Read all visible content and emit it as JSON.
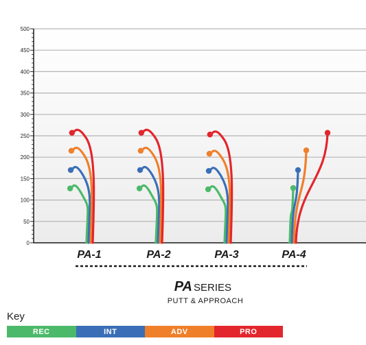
{
  "chart_data": {
    "type": "line",
    "title": "",
    "xlabel": "",
    "ylabel": "",
    "ylim": [
      0,
      500
    ],
    "y_ticks": [
      "0",
      "50",
      "100",
      "150",
      "200",
      "250",
      "300",
      "350",
      "400",
      "450",
      "500"
    ],
    "grid": true,
    "categories": [
      "PA-1",
      "PA-2",
      "PA-3",
      "PA-4"
    ],
    "series": [
      {
        "name": "REC",
        "color": "#4cb96a",
        "values": [
          127,
          127,
          125,
          128
        ]
      },
      {
        "name": "INT",
        "color": "#3a6fb7",
        "values": [
          170,
          170,
          168,
          170
        ]
      },
      {
        "name": "ADV",
        "color": "#f07f2a",
        "values": [
          215,
          215,
          208,
          216
        ]
      },
      {
        "name": "PRO",
        "color": "#e3262d",
        "values": [
          257,
          257,
          253,
          257
        ]
      }
    ],
    "series_brand": "PA",
    "series_word": "SERIES",
    "series_subtitle": "PUTT & APPROACH"
  },
  "key": {
    "title": "Key",
    "items": [
      {
        "label": "REC",
        "color": "#4cb96a"
      },
      {
        "label": "INT",
        "color": "#3a6fb7"
      },
      {
        "label": "ADV",
        "color": "#f07f2a"
      },
      {
        "label": "PRO",
        "color": "#e3262d"
      }
    ]
  }
}
